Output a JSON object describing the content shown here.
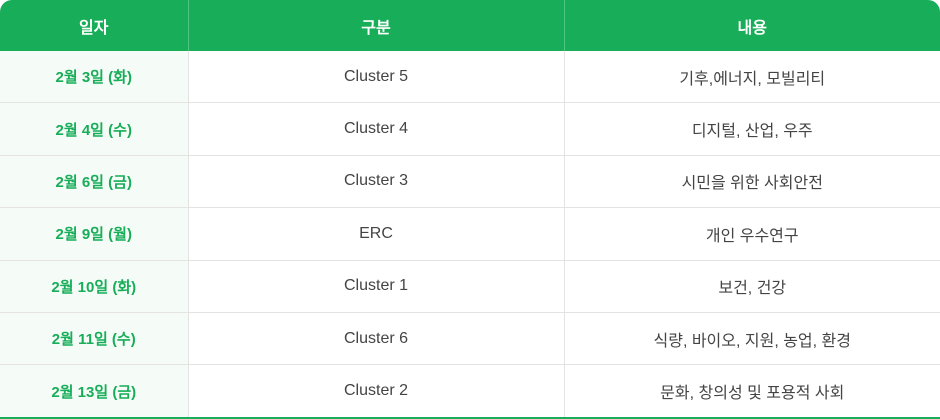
{
  "colors": {
    "accent": "#18ad58",
    "date_column_bg": "#f5fcf7"
  },
  "headers": [
    "일자",
    "구분",
    "내용"
  ],
  "rows": [
    {
      "date": "2월 3일 (화)",
      "category": "Cluster 5",
      "content": "기후,에너지, 모빌리티"
    },
    {
      "date": "2월 4일 (수)",
      "category": "Cluster 4",
      "content": "디지털, 산업, 우주"
    },
    {
      "date": "2월 6일 (금)",
      "category": "Cluster 3",
      "content": "시민을 위한 사회안전"
    },
    {
      "date": "2월 9일 (월)",
      "category": "ERC",
      "content": "개인 우수연구"
    },
    {
      "date": "2월 10일 (화)",
      "category": "Cluster 1",
      "content": "보건, 건강"
    },
    {
      "date": "2월 11일 (수)",
      "category": "Cluster 6",
      "content": "식량, 바이오, 지원, 농업, 환경"
    },
    {
      "date": "2월 13일 (금)",
      "category": "Cluster 2",
      "content": "문화, 창의성 및 포용적 사회"
    }
  ]
}
